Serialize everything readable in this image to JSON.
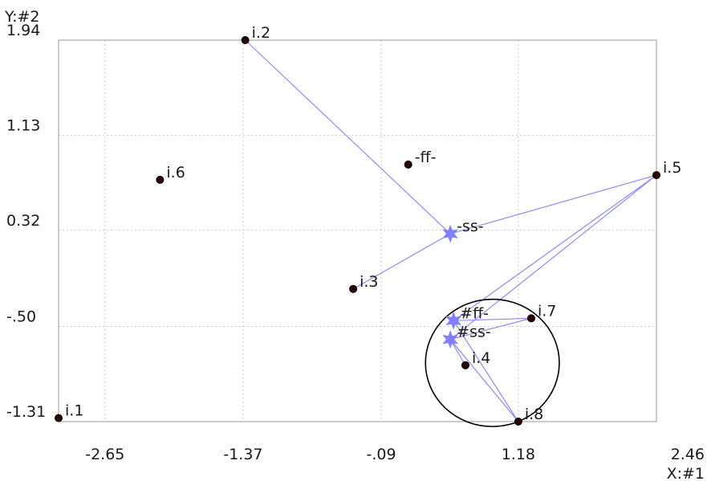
{
  "chart_data": {
    "type": "scatter",
    "ylabel": "Y:#2",
    "xlabel": "X:#1",
    "xlim": [
      -3.08,
      2.46
    ],
    "ylim": [
      -1.31,
      1.94
    ],
    "x_ticks": [
      "-2.65",
      "-1.37",
      "-.09",
      "1.18",
      "2.46"
    ],
    "y_ticks": [
      "1.94",
      "1.13",
      "0.32",
      "-.50",
      "-1.31"
    ],
    "grid": true,
    "points": [
      {
        "label": "i.1",
        "x": -3.08,
        "y": -1.28,
        "kind": "dot"
      },
      {
        "label": "i.2",
        "x": -1.35,
        "y": 1.94,
        "kind": "dot"
      },
      {
        "label": "i.3",
        "x": -0.35,
        "y": -0.18,
        "kind": "dot"
      },
      {
        "label": "i.4",
        "x": 0.69,
        "y": -0.83,
        "kind": "dot"
      },
      {
        "label": "i.5",
        "x": 2.46,
        "y": 0.79,
        "kind": "dot"
      },
      {
        "label": "i.6",
        "x": -2.14,
        "y": 0.75,
        "kind": "dot"
      },
      {
        "label": "i.7",
        "x": 1.3,
        "y": -0.43,
        "kind": "dot"
      },
      {
        "label": "i.8",
        "x": 1.18,
        "y": -1.31,
        "kind": "dot"
      },
      {
        "label": "-ff-",
        "x": 0.16,
        "y": 0.88,
        "kind": "dot"
      },
      {
        "label": "-ss-",
        "x": 0.55,
        "y": 0.29,
        "kind": "star"
      },
      {
        "label": "#ff-",
        "x": 0.58,
        "y": -0.45,
        "kind": "star"
      },
      {
        "label": "#ss-",
        "x": 0.55,
        "y": -0.61,
        "kind": "star"
      }
    ],
    "links": [
      [
        "i.2",
        "-ss-"
      ],
      [
        "i.3",
        "-ss-"
      ],
      [
        "i.5",
        "-ss-"
      ],
      [
        "i.5",
        "#ff-"
      ],
      [
        "i.5",
        "#ss-"
      ],
      [
        "i.7",
        "#ff-"
      ],
      [
        "i.7",
        "#ss-"
      ],
      [
        "i.4",
        "#ss-"
      ],
      [
        "i.8",
        "#ff-"
      ],
      [
        "i.8",
        "#ss-"
      ]
    ],
    "circle": {
      "cx": 0.94,
      "cy": -0.81,
      "r_x": 0.62
    },
    "colors": {
      "line": "#8c8cf0",
      "star": "#8080ff",
      "dot": "#2b0000",
      "grid": "#c8c8c8",
      "frame": "#999999",
      "circle": "#000000"
    }
  }
}
